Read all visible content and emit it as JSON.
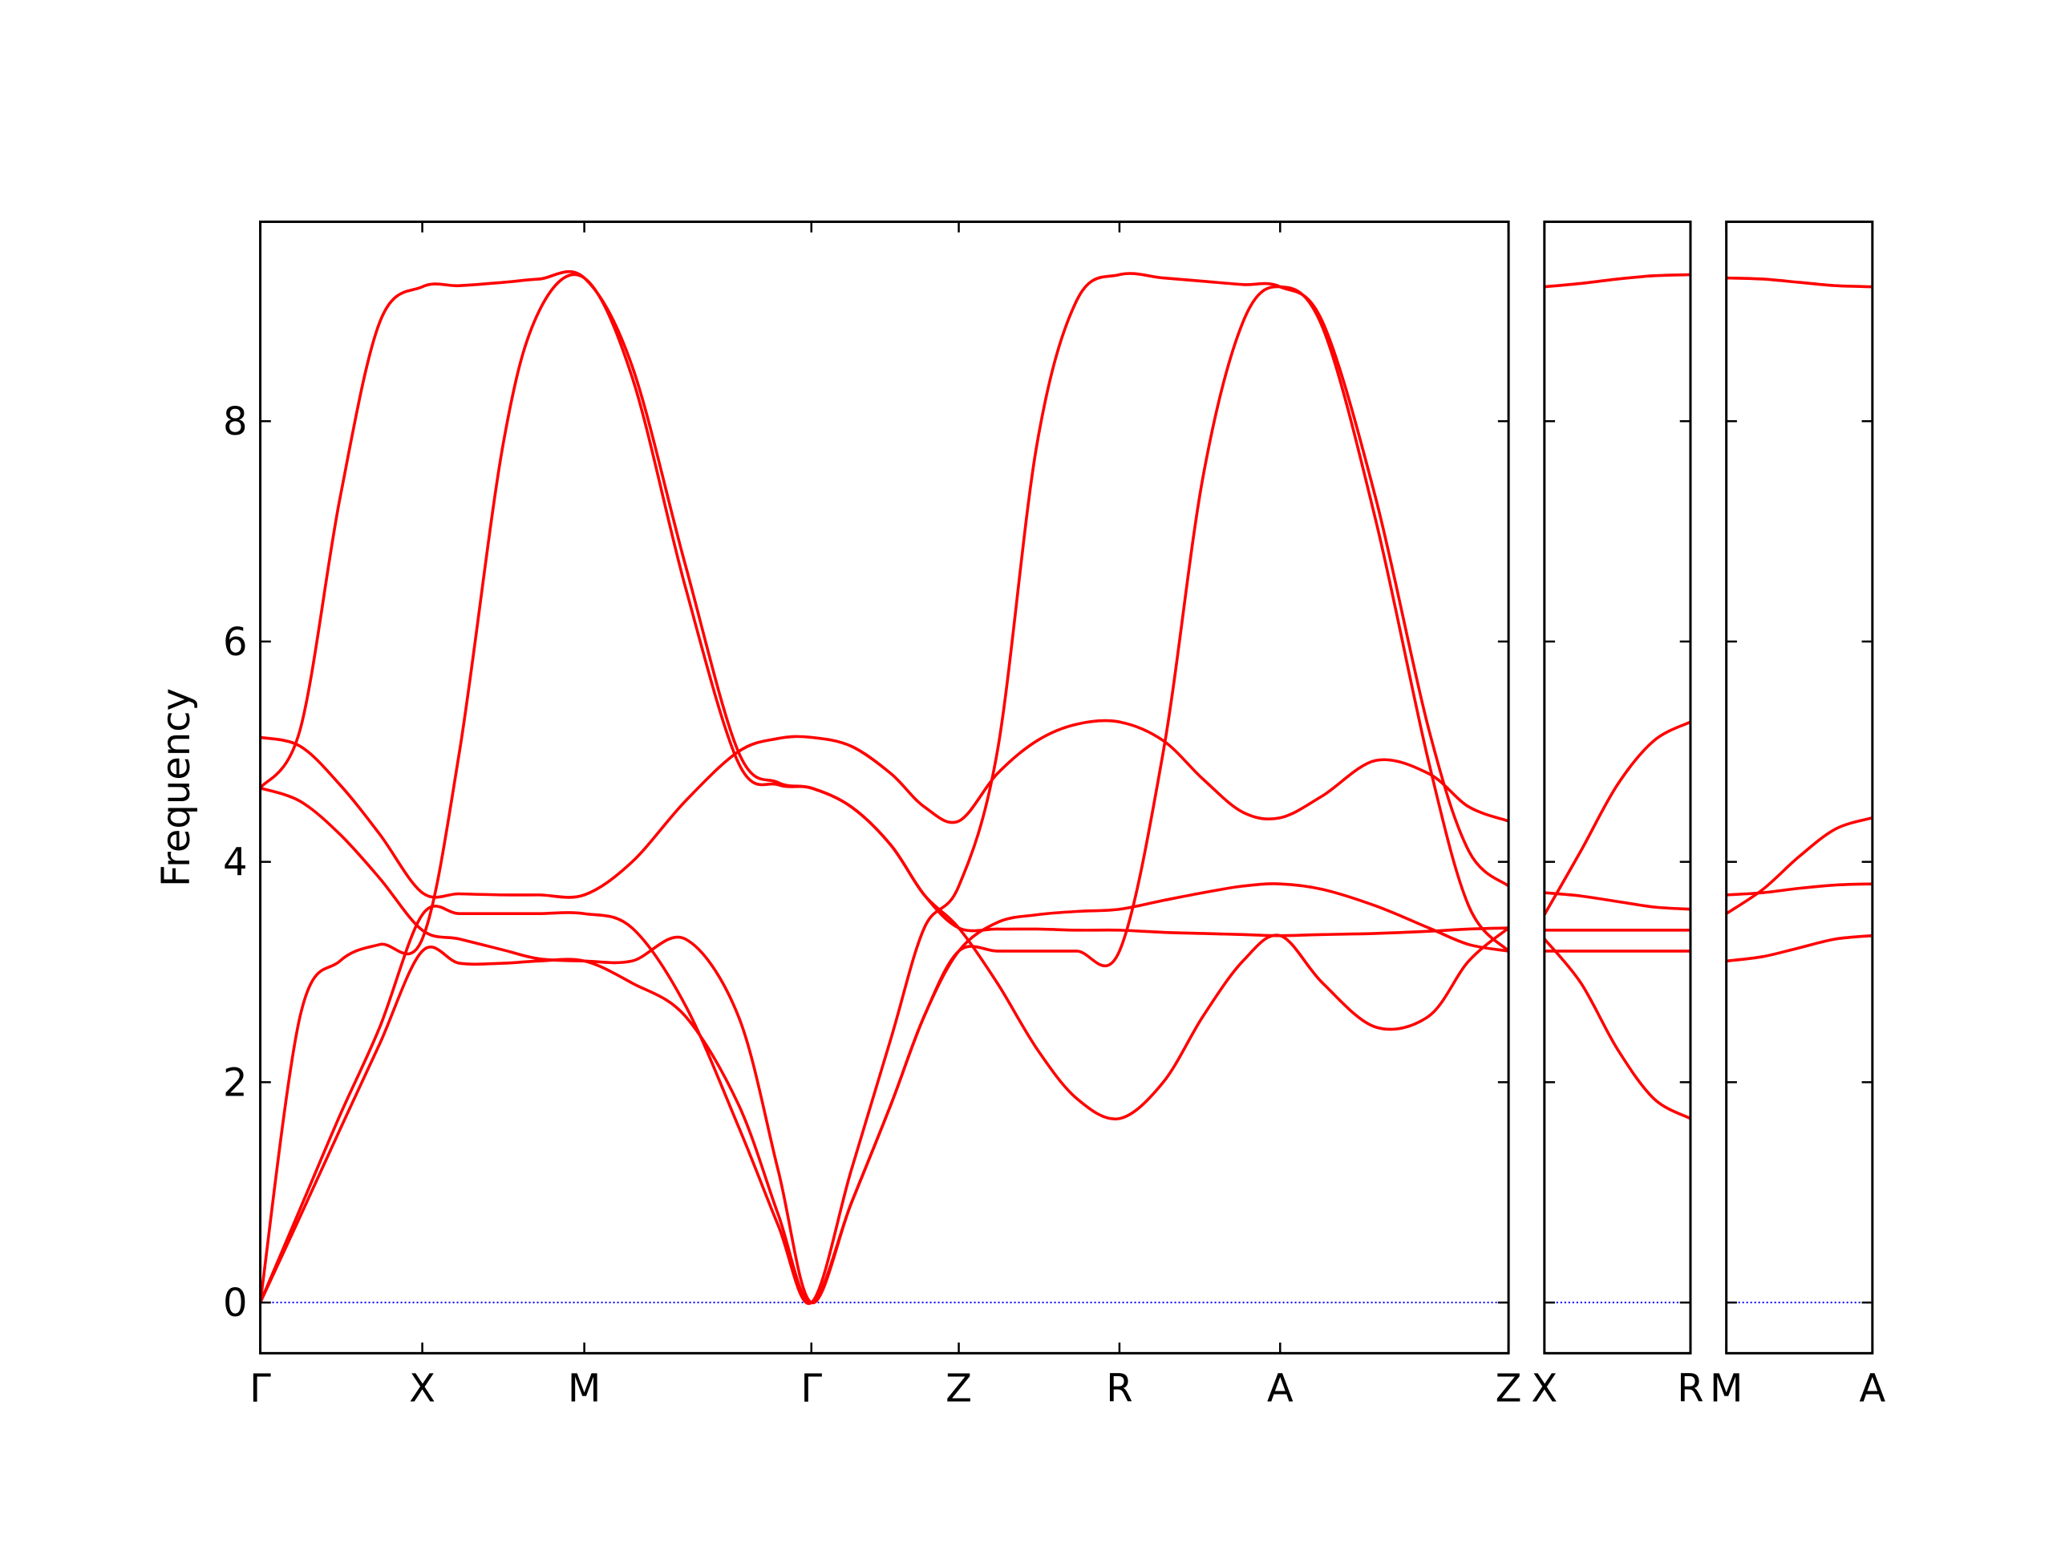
{
  "chart_data": [
    {
      "type": "line",
      "ylabel": "Frequency",
      "show_ytick_labels": true,
      "x": [
        0,
        0.3,
        0.6,
        0.9,
        1.22,
        1.5,
        1.83,
        2.1,
        2.44,
        2.8,
        3.2,
        3.6,
        3.9,
        4.15,
        4.45,
        4.75,
        5.0,
        5.26,
        5.55,
        5.85,
        6.15,
        6.47,
        6.8,
        7.1,
        7.4,
        7.68,
        8.0,
        8.4,
        8.8,
        9.1,
        9.4
      ],
      "xlim": [
        0,
        9.4
      ],
      "xticks": [
        {
          "value": 0,
          "label": "Γ"
        },
        {
          "value": 1.22,
          "label": "X"
        },
        {
          "value": 2.44,
          "label": "M"
        },
        {
          "value": 4.15,
          "label": "Γ"
        },
        {
          "value": 5.26,
          "label": "Z"
        },
        {
          "value": 6.47,
          "label": "R"
        },
        {
          "value": 7.68,
          "label": "A"
        },
        {
          "value": 9.4,
          "label": "Z"
        }
      ],
      "ylim": [
        -0.46,
        9.81
      ],
      "yticks": [
        0,
        2,
        4,
        6,
        8
      ],
      "zero_line": {
        "value": 0,
        "color": "#0000ff"
      },
      "series": [
        {
          "color": "#ff0000",
          "values": [
            0,
            0.78,
            1.57,
            2.35,
            3.19,
            3.08,
            3.08,
            3.1,
            3.1,
            2.9,
            2.6,
            1.8,
            0.8,
            0,
            0.9,
            1.8,
            2.6,
            3.19,
            3.19,
            3.19,
            3.19,
            3.19,
            5.0,
            7.5,
            8.9,
            9.22,
            8.85,
            7.1,
            4.9,
            3.6,
            3.19
          ]
        },
        {
          "color": "#ff0000",
          "values": [
            0,
            2.6,
            3.1,
            3.25,
            3.3,
            5.0,
            7.8,
            9.0,
            9.3,
            8.4,
            6.5,
            4.9,
            4.7,
            4.67,
            4.5,
            4.15,
            3.7,
            3.4,
            3.39,
            3.39,
            3.38,
            3.38,
            3.36,
            3.35,
            3.34,
            3.33,
            3.34,
            3.35,
            3.37,
            3.39,
            3.4
          ]
        },
        {
          "color": "#ff0000",
          "values": [
            0,
            0.85,
            1.7,
            2.5,
            3.52,
            3.53,
            3.53,
            3.53,
            3.53,
            3.4,
            2.7,
            1.6,
            0.7,
            0,
            1.2,
            2.4,
            3.4,
            3.78,
            5.0,
            7.8,
            9.1,
            9.33,
            9.3,
            9.27,
            9.24,
            9.22,
            8.9,
            7.3,
            5.2,
            4.1,
            3.78
          ]
        },
        {
          "color": "#ff0000",
          "values": [
            4.67,
            5.2,
            7.3,
            8.9,
            9.22,
            9.23,
            9.26,
            9.29,
            9.3,
            8.5,
            6.7,
            5.0,
            4.72,
            4.67,
            4.5,
            4.15,
            3.7,
            3.4,
            2.9,
            2.3,
            1.85,
            1.67,
            2.0,
            2.6,
            3.1,
            3.33,
            2.9,
            2.5,
            2.6,
            3.1,
            3.4
          ]
        },
        {
          "color": "#ff0000",
          "values": [
            4.67,
            4.55,
            4.25,
            3.85,
            3.38,
            3.3,
            3.2,
            3.12,
            3.1,
            3.1,
            3.3,
            2.6,
            1.2,
            0,
            0.9,
            1.8,
            2.6,
            3.19,
            3.45,
            3.52,
            3.55,
            3.57,
            3.65,
            3.72,
            3.78,
            3.8,
            3.75,
            3.6,
            3.4,
            3.25,
            3.19
          ]
        },
        {
          "color": "#ff0000",
          "values": [
            5.13,
            5.05,
            4.7,
            4.25,
            3.72,
            3.71,
            3.7,
            3.7,
            3.7,
            4.0,
            4.55,
            5.0,
            5.12,
            5.13,
            5.05,
            4.8,
            4.5,
            4.37,
            4.8,
            5.1,
            5.25,
            5.27,
            5.1,
            4.75,
            4.45,
            4.4,
            4.6,
            4.92,
            4.8,
            4.5,
            4.37
          ]
        }
      ]
    },
    {
      "type": "line",
      "show_ytick_labels": false,
      "x": [
        0,
        0.275,
        0.55,
        0.825,
        1.1
      ],
      "xlim": [
        0,
        1.1
      ],
      "xticks": [
        {
          "value": 0,
          "label": "X"
        },
        {
          "value": 1.1,
          "label": "R"
        }
      ],
      "ylim": [
        -0.46,
        9.81
      ],
      "yticks": [
        0,
        2,
        4,
        6,
        8
      ],
      "zero_line": {
        "value": 0,
        "color": "#0000ff"
      },
      "series": [
        {
          "color": "#ff0000",
          "values": [
            9.22,
            9.25,
            9.29,
            9.32,
            9.33
          ]
        },
        {
          "color": "#ff0000",
          "values": [
            3.52,
            4.1,
            4.7,
            5.1,
            5.27
          ]
        },
        {
          "color": "#ff0000",
          "values": [
            3.72,
            3.69,
            3.64,
            3.59,
            3.57
          ]
        },
        {
          "color": "#ff0000",
          "values": [
            3.38,
            3.38,
            3.38,
            3.38,
            3.38
          ]
        },
        {
          "color": "#ff0000",
          "values": [
            3.19,
            3.19,
            3.19,
            3.19,
            3.19
          ]
        },
        {
          "color": "#ff0000",
          "values": [
            3.3,
            2.9,
            2.3,
            1.85,
            1.67
          ]
        }
      ]
    },
    {
      "type": "line",
      "show_ytick_labels": false,
      "x": [
        0,
        0.275,
        0.55,
        0.825,
        1.1
      ],
      "xlim": [
        0,
        1.1
      ],
      "xticks": [
        {
          "value": 0,
          "label": "M"
        },
        {
          "value": 1.1,
          "label": "A"
        }
      ],
      "ylim": [
        -0.46,
        9.81
      ],
      "yticks": [
        0,
        2,
        4,
        6,
        8
      ],
      "zero_line": {
        "value": 0,
        "color": "#0000ff"
      },
      "series": [
        {
          "color": "#ff0000",
          "values": [
            9.3,
            9.29,
            9.26,
            9.23,
            9.22
          ]
        },
        {
          "color": "#ff0000",
          "values": [
            3.53,
            3.75,
            4.05,
            4.3,
            4.4
          ]
        },
        {
          "color": "#ff0000",
          "values": [
            3.7,
            3.72,
            3.76,
            3.79,
            3.8
          ]
        },
        {
          "color": "#ff0000",
          "values": [
            3.1,
            3.14,
            3.22,
            3.3,
            3.33
          ]
        }
      ]
    }
  ]
}
